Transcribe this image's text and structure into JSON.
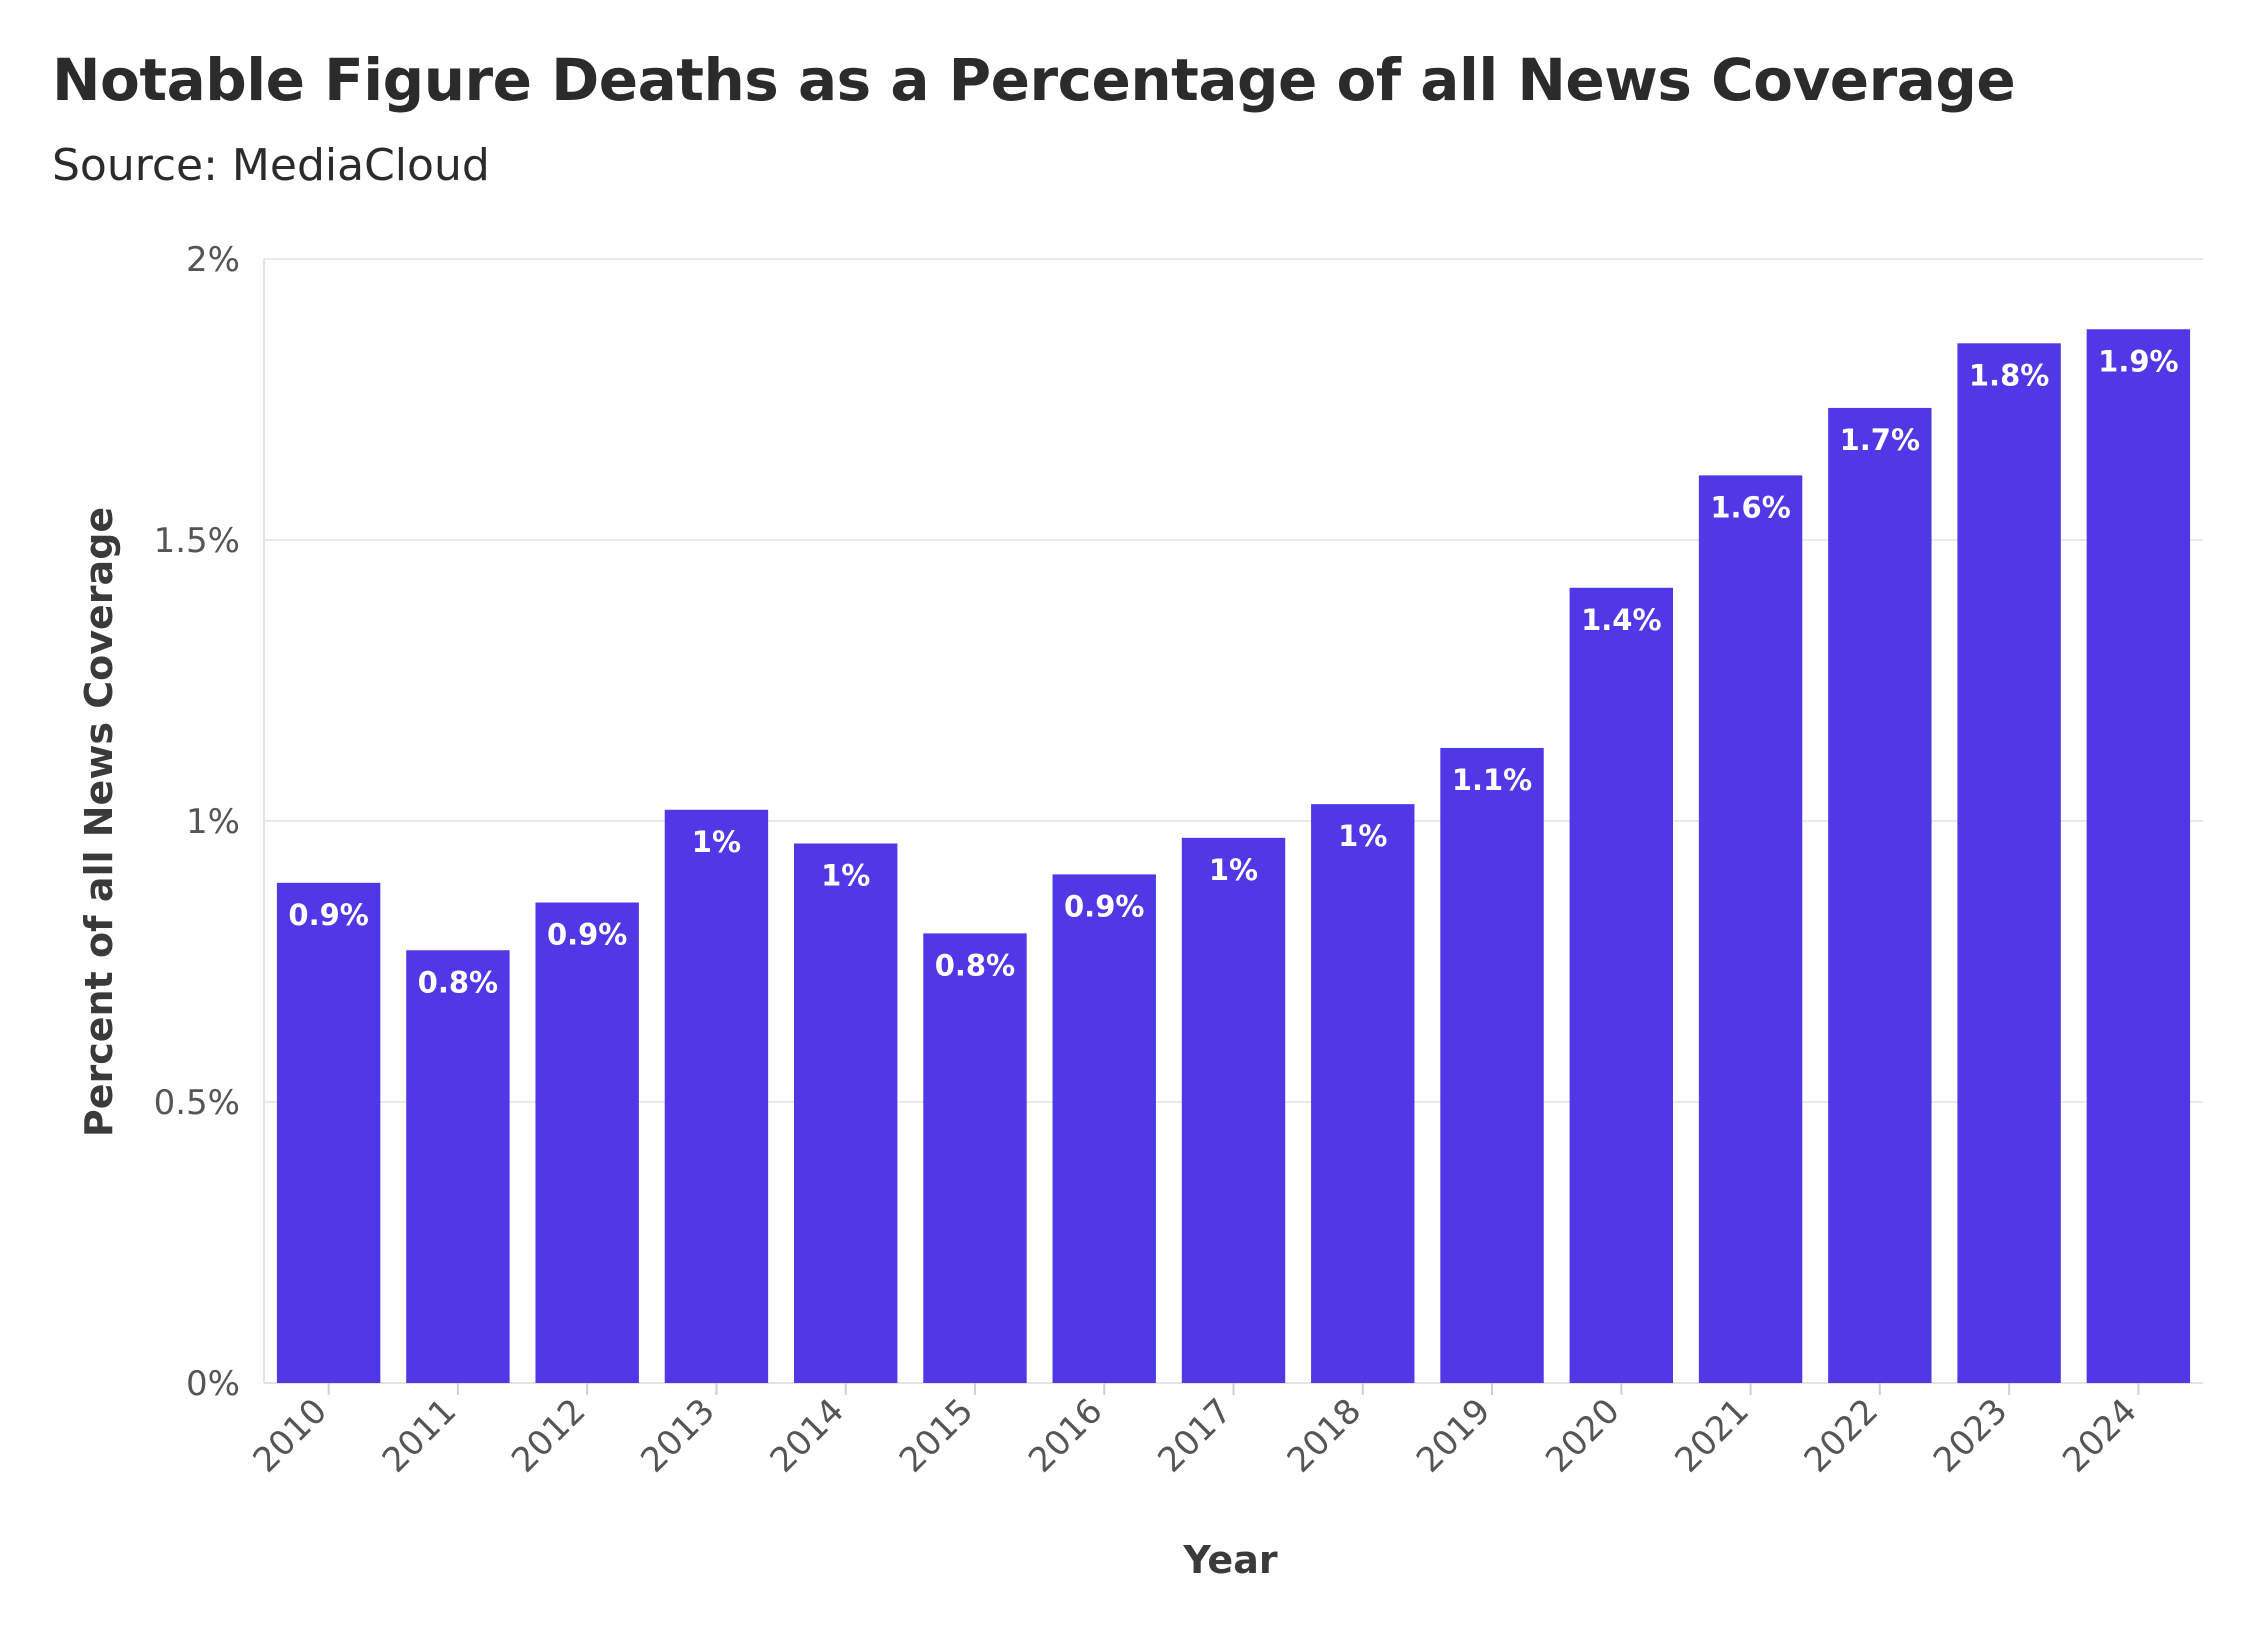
{
  "chart_data": {
    "type": "bar",
    "title": "Notable Figure Deaths as a Percentage of all News Coverage",
    "subtitle": "Source: MediaCloud",
    "xlabel": "Year",
    "ylabel": "Percent of all News Coverage",
    "ylim": [
      0,
      2
    ],
    "yticks": [
      {
        "value": 0,
        "label": "0%"
      },
      {
        "value": 0.5,
        "label": "0.5%"
      },
      {
        "value": 1,
        "label": "1%"
      },
      {
        "value": 1.5,
        "label": "1.5%"
      },
      {
        "value": 2,
        "label": "2%"
      }
    ],
    "categories": [
      "2010",
      "2011",
      "2012",
      "2013",
      "2014",
      "2015",
      "2016",
      "2017",
      "2018",
      "2019",
      "2020",
      "2021",
      "2022",
      "2023",
      "2024"
    ],
    "values": [
      0.89,
      0.77,
      0.855,
      1.02,
      0.96,
      0.8,
      0.905,
      0.97,
      1.03,
      1.13,
      1.415,
      1.615,
      1.735,
      1.85,
      1.875
    ],
    "labels": [
      "0.9%",
      "0.8%",
      "0.9%",
      "1%",
      "1%",
      "0.8%",
      "0.9%",
      "1%",
      "1%",
      "1.1%",
      "1.4%",
      "1.6%",
      "1.7%",
      "1.8%",
      "1.9%"
    ],
    "grid": true,
    "bar_color": "#5138e6"
  }
}
